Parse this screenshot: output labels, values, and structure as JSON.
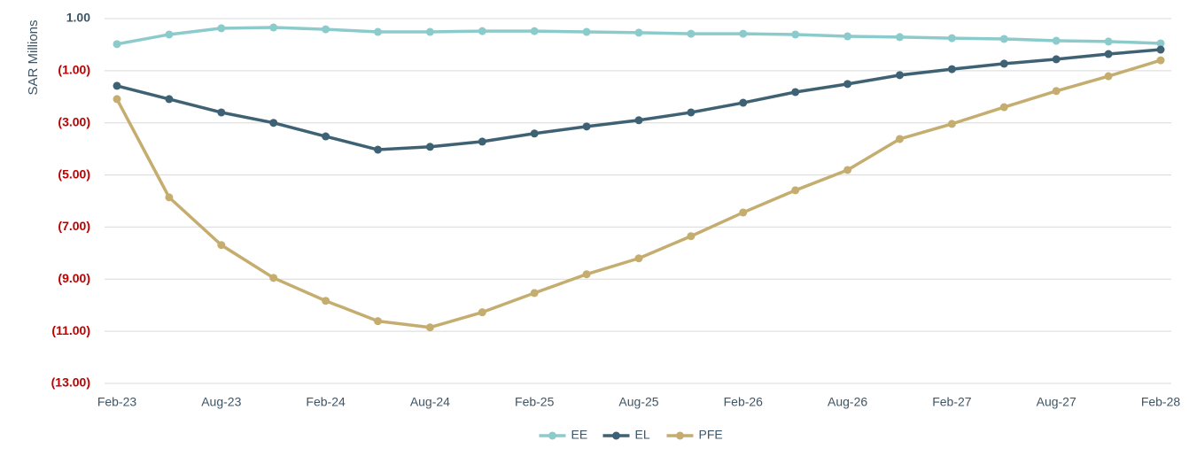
{
  "chart_data": {
    "type": "line",
    "y_label": "SAR Millions",
    "categories": [
      "Feb-23",
      null,
      "Aug-23",
      null,
      "Feb-24",
      null,
      "Aug-24",
      null,
      "Feb-25",
      null,
      "Aug-25",
      null,
      "Feb-26",
      null,
      "Aug-26",
      null,
      "Feb-27",
      null,
      "Aug-27",
      null,
      "Feb-28"
    ],
    "series": [
      {
        "name": "EE",
        "color": "#8ccbcb",
        "values": [
          0.02,
          0.39,
          0.63,
          0.66,
          0.59,
          0.49,
          0.49,
          0.52,
          0.52,
          0.49,
          0.46,
          0.42,
          0.42,
          0.39,
          0.32,
          0.29,
          0.25,
          0.22,
          0.15,
          0.12,
          0.05
        ]
      },
      {
        "name": "EL",
        "color": "#3e6274",
        "values": [
          -1.58,
          -2.09,
          -2.6,
          -3.0,
          -3.52,
          -4.03,
          -3.92,
          -3.72,
          -3.41,
          -3.14,
          -2.9,
          -2.6,
          -2.23,
          -1.82,
          -1.51,
          -1.17,
          -0.94,
          -0.73,
          -0.56,
          -0.36,
          -0.19
        ]
      },
      {
        "name": "PFE",
        "color": "#c4ad6e",
        "values": [
          -2.09,
          -5.86,
          -7.69,
          -8.95,
          -9.83,
          -10.61,
          -10.85,
          -10.27,
          -9.53,
          -8.81,
          -8.2,
          -7.35,
          -6.44,
          -5.59,
          -4.81,
          -3.62,
          -3.04,
          -2.4,
          -1.78,
          -1.21,
          -0.6
        ]
      }
    ],
    "ylim": [
      -13,
      1
    ],
    "yticks": [
      {
        "value": 1,
        "label": "1.00"
      },
      {
        "value": -1,
        "label": "(1.00)"
      },
      {
        "value": -3,
        "label": "(3.00)"
      },
      {
        "value": -5,
        "label": "(5.00)"
      },
      {
        "value": -7,
        "label": "(7.00)"
      },
      {
        "value": -9,
        "label": "(9.00)"
      },
      {
        "value": -11,
        "label": "(11.00)"
      },
      {
        "value": -13,
        "label": "(13.00)"
      }
    ],
    "negative_tick_color": "#c00000",
    "grid": true,
    "legend": "bottom"
  }
}
